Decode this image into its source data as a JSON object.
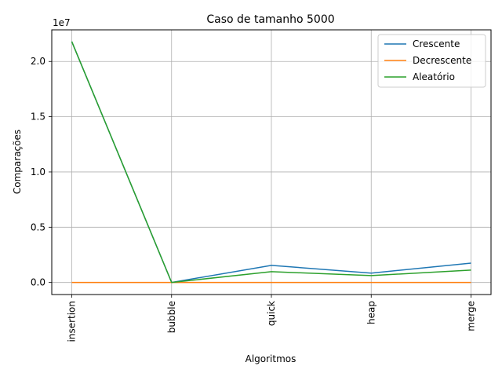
{
  "chart_data": {
    "type": "line",
    "title": "Caso  de tamanho 5000",
    "xlabel": "Algoritmos",
    "ylabel": "Comparações",
    "categories": [
      "insertion",
      "bubble",
      "quick",
      "heap",
      "merge"
    ],
    "y_offset_label": "1e7",
    "yticks": [
      0.0,
      5000000,
      10000000,
      15000000,
      20000000
    ],
    "ytick_labels": [
      "0.0",
      "0.5",
      "1.0",
      "1.5",
      "2.0"
    ],
    "ylim": [
      -1090000,
      22860000
    ],
    "grid": true,
    "legend_position": "top-right",
    "series": [
      {
        "name": "Crescente",
        "color": "#1f77b4",
        "values": [
          21800000,
          5000,
          1550000,
          850000,
          1750000
        ]
      },
      {
        "name": "Decrescente",
        "color": "#ff7f0e",
        "values": [
          4999,
          4999,
          5000,
          5000,
          5000
        ]
      },
      {
        "name": "Aleatório",
        "color": "#2ca02c",
        "values": [
          21800000,
          5000,
          980000,
          620000,
          1120000
        ]
      }
    ]
  }
}
